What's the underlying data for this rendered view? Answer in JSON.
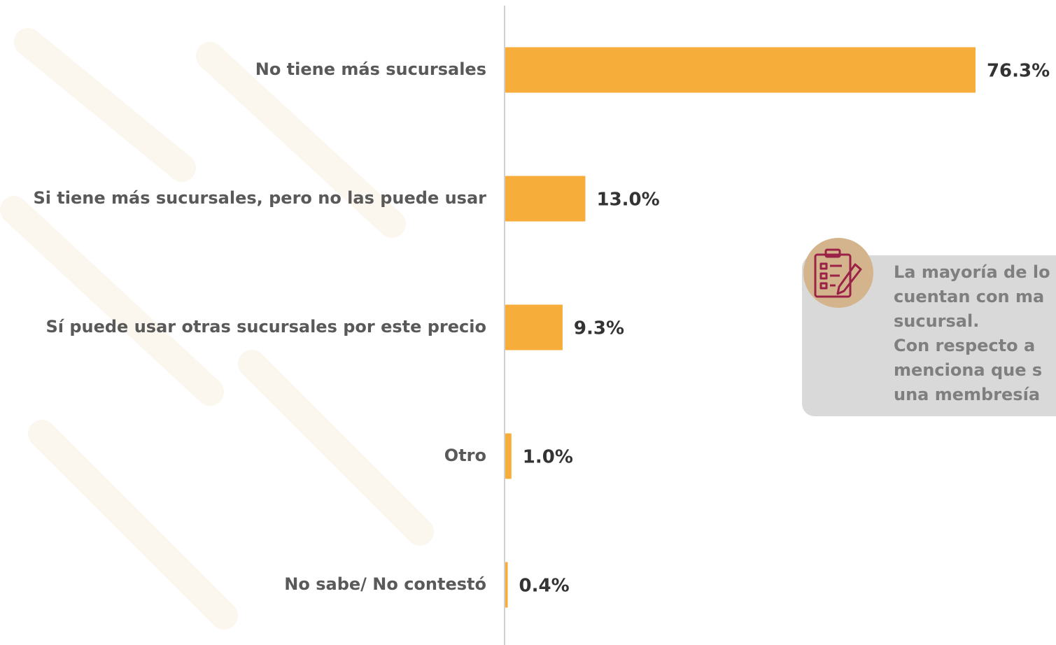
{
  "chart_data": {
    "type": "bar",
    "orientation": "horizontal",
    "categories": [
      "No tiene más sucursales",
      "Si tiene más sucursales, pero no las puede usar",
      "Sí puede usar otras sucursales por este precio",
      "Otro",
      "No sabe/ No contestó"
    ],
    "values": [
      76.3,
      13.0,
      9.3,
      1.0,
      0.4
    ],
    "value_labels": [
      "76.3%",
      "13.0%",
      "9.3%",
      "1.0%",
      "0.4%"
    ],
    "color": "#f7ad3a"
  },
  "callout": {
    "lines": [
      "La mayoría de lo",
      "cuentan con ma",
      "sucursal.",
      "Con respecto a",
      "menciona que s",
      "una membresía"
    ]
  }
}
